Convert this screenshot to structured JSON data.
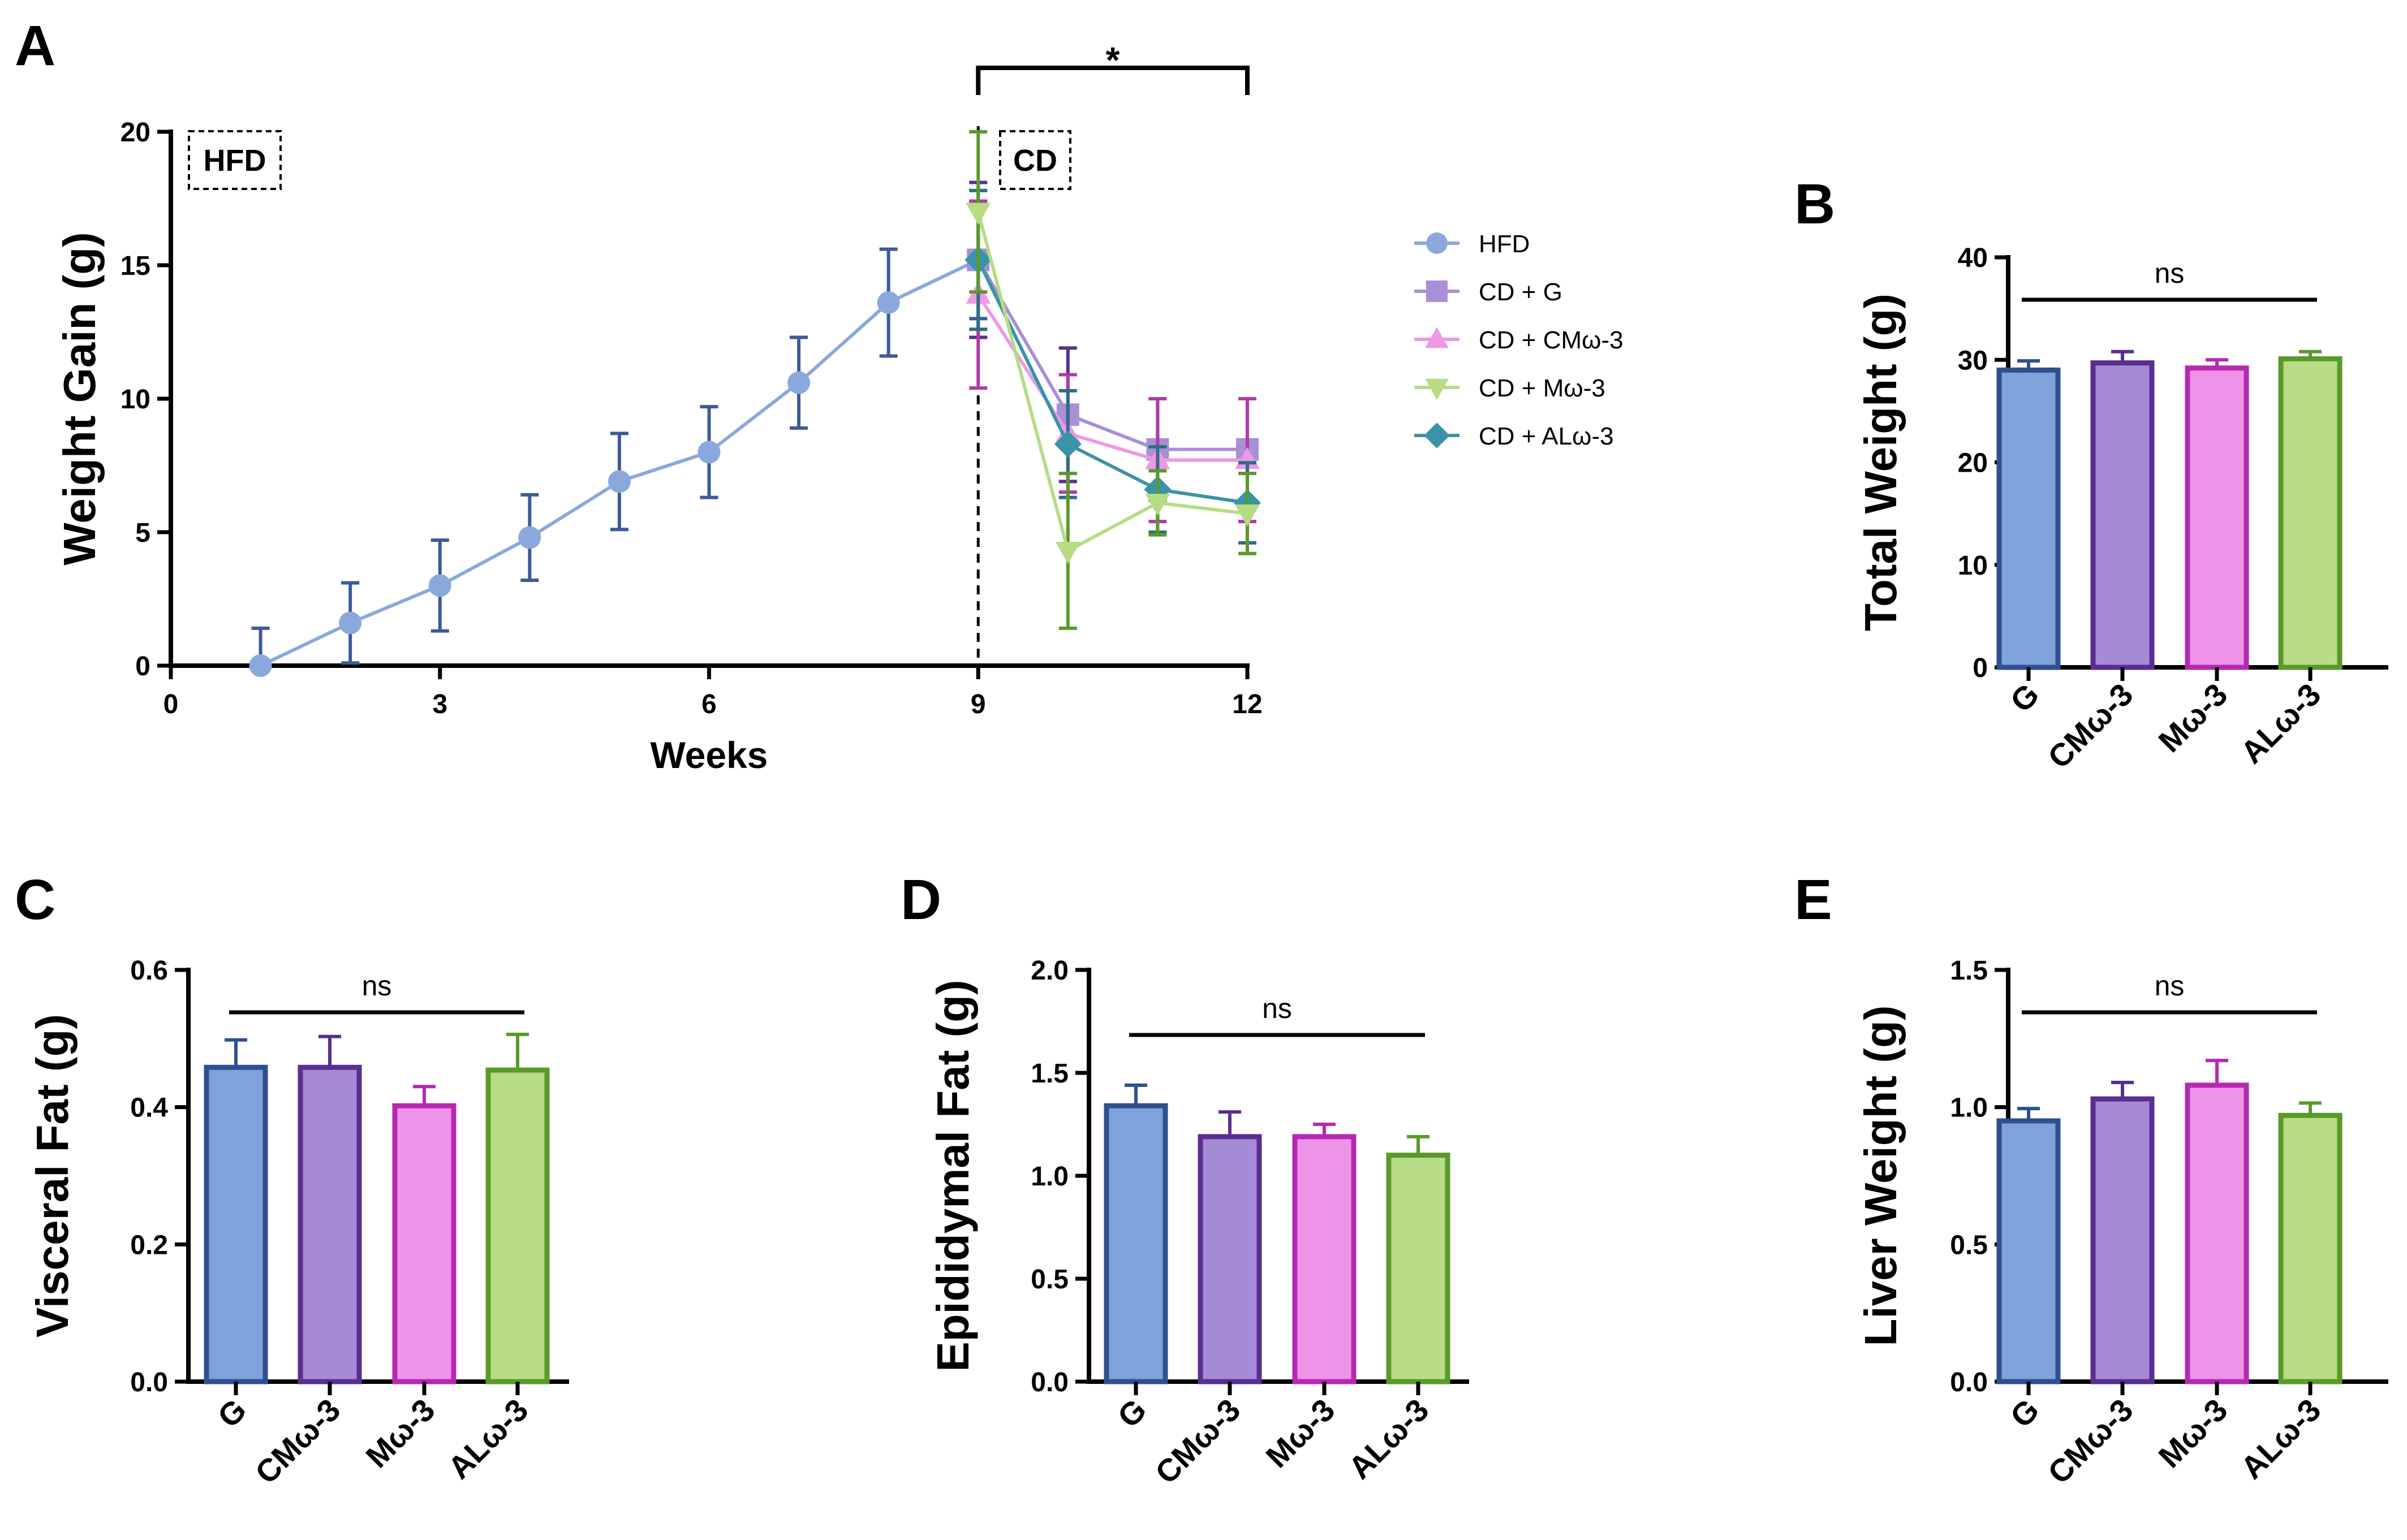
{
  "chart_data": [
    {
      "panel": "A",
      "type": "line",
      "xlabel": "Weeks",
      "ylabel": "Weight Gain (g)",
      "xlim": [
        0,
        12
      ],
      "ylim": [
        0,
        20
      ],
      "xticks": [
        0,
        3,
        6,
        9,
        12
      ],
      "yticks": [
        0,
        5,
        10,
        15,
        20
      ],
      "annotations": {
        "phase1": "HFD",
        "phase2": "CD",
        "divider_at_week": 9,
        "bracket_from": 9,
        "bracket_to": 12,
        "bracket_label": "*"
      },
      "legend_position": "right",
      "series": [
        {
          "name": "HFD",
          "marker": "circle",
          "color": "#8aa8dc",
          "err_color": "#3d5a99",
          "x": [
            1,
            2,
            3,
            4,
            5,
            6,
            7,
            8,
            9
          ],
          "y": [
            0,
            1.6,
            3.0,
            4.8,
            6.9,
            8.0,
            10.6,
            13.6,
            15.2
          ],
          "err": [
            1.4,
            1.5,
            1.7,
            1.6,
            1.8,
            1.7,
            1.7,
            2.0,
            2.2
          ]
        },
        {
          "name": "CD + G",
          "marker": "square",
          "color": "#a98fd6",
          "err_color": "#5a2f8f",
          "x": [
            9,
            10,
            11,
            12
          ],
          "y": [
            15.2,
            9.4,
            8.1,
            8.1
          ],
          "err": [
            2.9,
            2.5,
            1.9,
            1.9
          ]
        },
        {
          "name": "CD + CMω-3",
          "marker": "triangle-up",
          "color": "#ee98e6",
          "err_color": "#b03aa8",
          "x": [
            9,
            10,
            11,
            12
          ],
          "y": [
            13.9,
            8.7,
            7.7,
            7.7
          ],
          "err": [
            3.5,
            2.2,
            2.3,
            2.3
          ]
        },
        {
          "name": "CD + Mω-3",
          "marker": "triangle-down",
          "color": "#b6dc84",
          "err_color": "#5a9a2a",
          "x": [
            9,
            10,
            11,
            12
          ],
          "y": [
            17.0,
            4.3,
            6.1,
            5.7
          ],
          "err": [
            3.0,
            2.9,
            1.2,
            1.5
          ]
        },
        {
          "name": "CD + ALω-3",
          "marker": "diamond",
          "color": "#3a93a8",
          "err_color": "#2f6d84",
          "x": [
            9,
            10,
            11,
            12
          ],
          "y": [
            15.2,
            8.3,
            6.6,
            6.1
          ],
          "err": [
            2.6,
            2.0,
            1.6,
            1.5
          ]
        }
      ]
    },
    {
      "panel": "B",
      "type": "bar",
      "ylabel": "Total Weight (g)",
      "categories": [
        "G",
        "CMω-3",
        "Mω-3",
        "ALω-3"
      ],
      "values": [
        29.0,
        29.7,
        29.2,
        30.1
      ],
      "err": [
        0.9,
        1.1,
        0.8,
        0.7
      ],
      "ylim": [
        0,
        40
      ],
      "yticks": [
        "0",
        "10",
        "20",
        "30",
        "40"
      ],
      "significance": "ns"
    },
    {
      "panel": "C",
      "type": "bar",
      "ylabel": "Visceral Fat (g)",
      "categories": [
        "G",
        "CMω-3",
        "Mω-3",
        "ALω-3"
      ],
      "values": [
        0.458,
        0.458,
        0.402,
        0.454
      ],
      "err": [
        0.04,
        0.045,
        0.028,
        0.052
      ],
      "ylim": [
        0,
        0.6
      ],
      "yticks": [
        "0.0",
        "0.2",
        "0.4",
        "0.6"
      ],
      "significance": "ns"
    },
    {
      "panel": "D",
      "type": "bar",
      "ylabel": "Epididymal Fat (g)",
      "categories": [
        "G",
        "CMω-3",
        "Mω-3",
        "ALω-3"
      ],
      "values": [
        1.34,
        1.19,
        1.19,
        1.1
      ],
      "err": [
        0.1,
        0.12,
        0.06,
        0.09
      ],
      "ylim": [
        0,
        2.0
      ],
      "yticks": [
        "0.0",
        "0.5",
        "1.0",
        "1.5",
        "2.0"
      ],
      "significance": "ns"
    },
    {
      "panel": "E",
      "type": "bar",
      "ylabel": "Liver Weight (g)",
      "categories": [
        "G",
        "CMω-3",
        "Mω-3",
        "ALω-3"
      ],
      "values": [
        0.95,
        1.03,
        1.08,
        0.97
      ],
      "err": [
        0.045,
        0.06,
        0.09,
        0.045
      ],
      "ylim": [
        0,
        1.5
      ],
      "yticks": [
        "0.0",
        "0.5",
        "1.0",
        "1.5"
      ],
      "significance": "ns"
    }
  ],
  "colors": {
    "axis": "#000000",
    "bar_fills": [
      "#7fa2da",
      "#a58bd5",
      "#ee94e8",
      "#b9dc86"
    ],
    "bar_edges": [
      "#2f4f8f",
      "#5a2e91",
      "#b52ab1",
      "#5a9a2a"
    ]
  }
}
